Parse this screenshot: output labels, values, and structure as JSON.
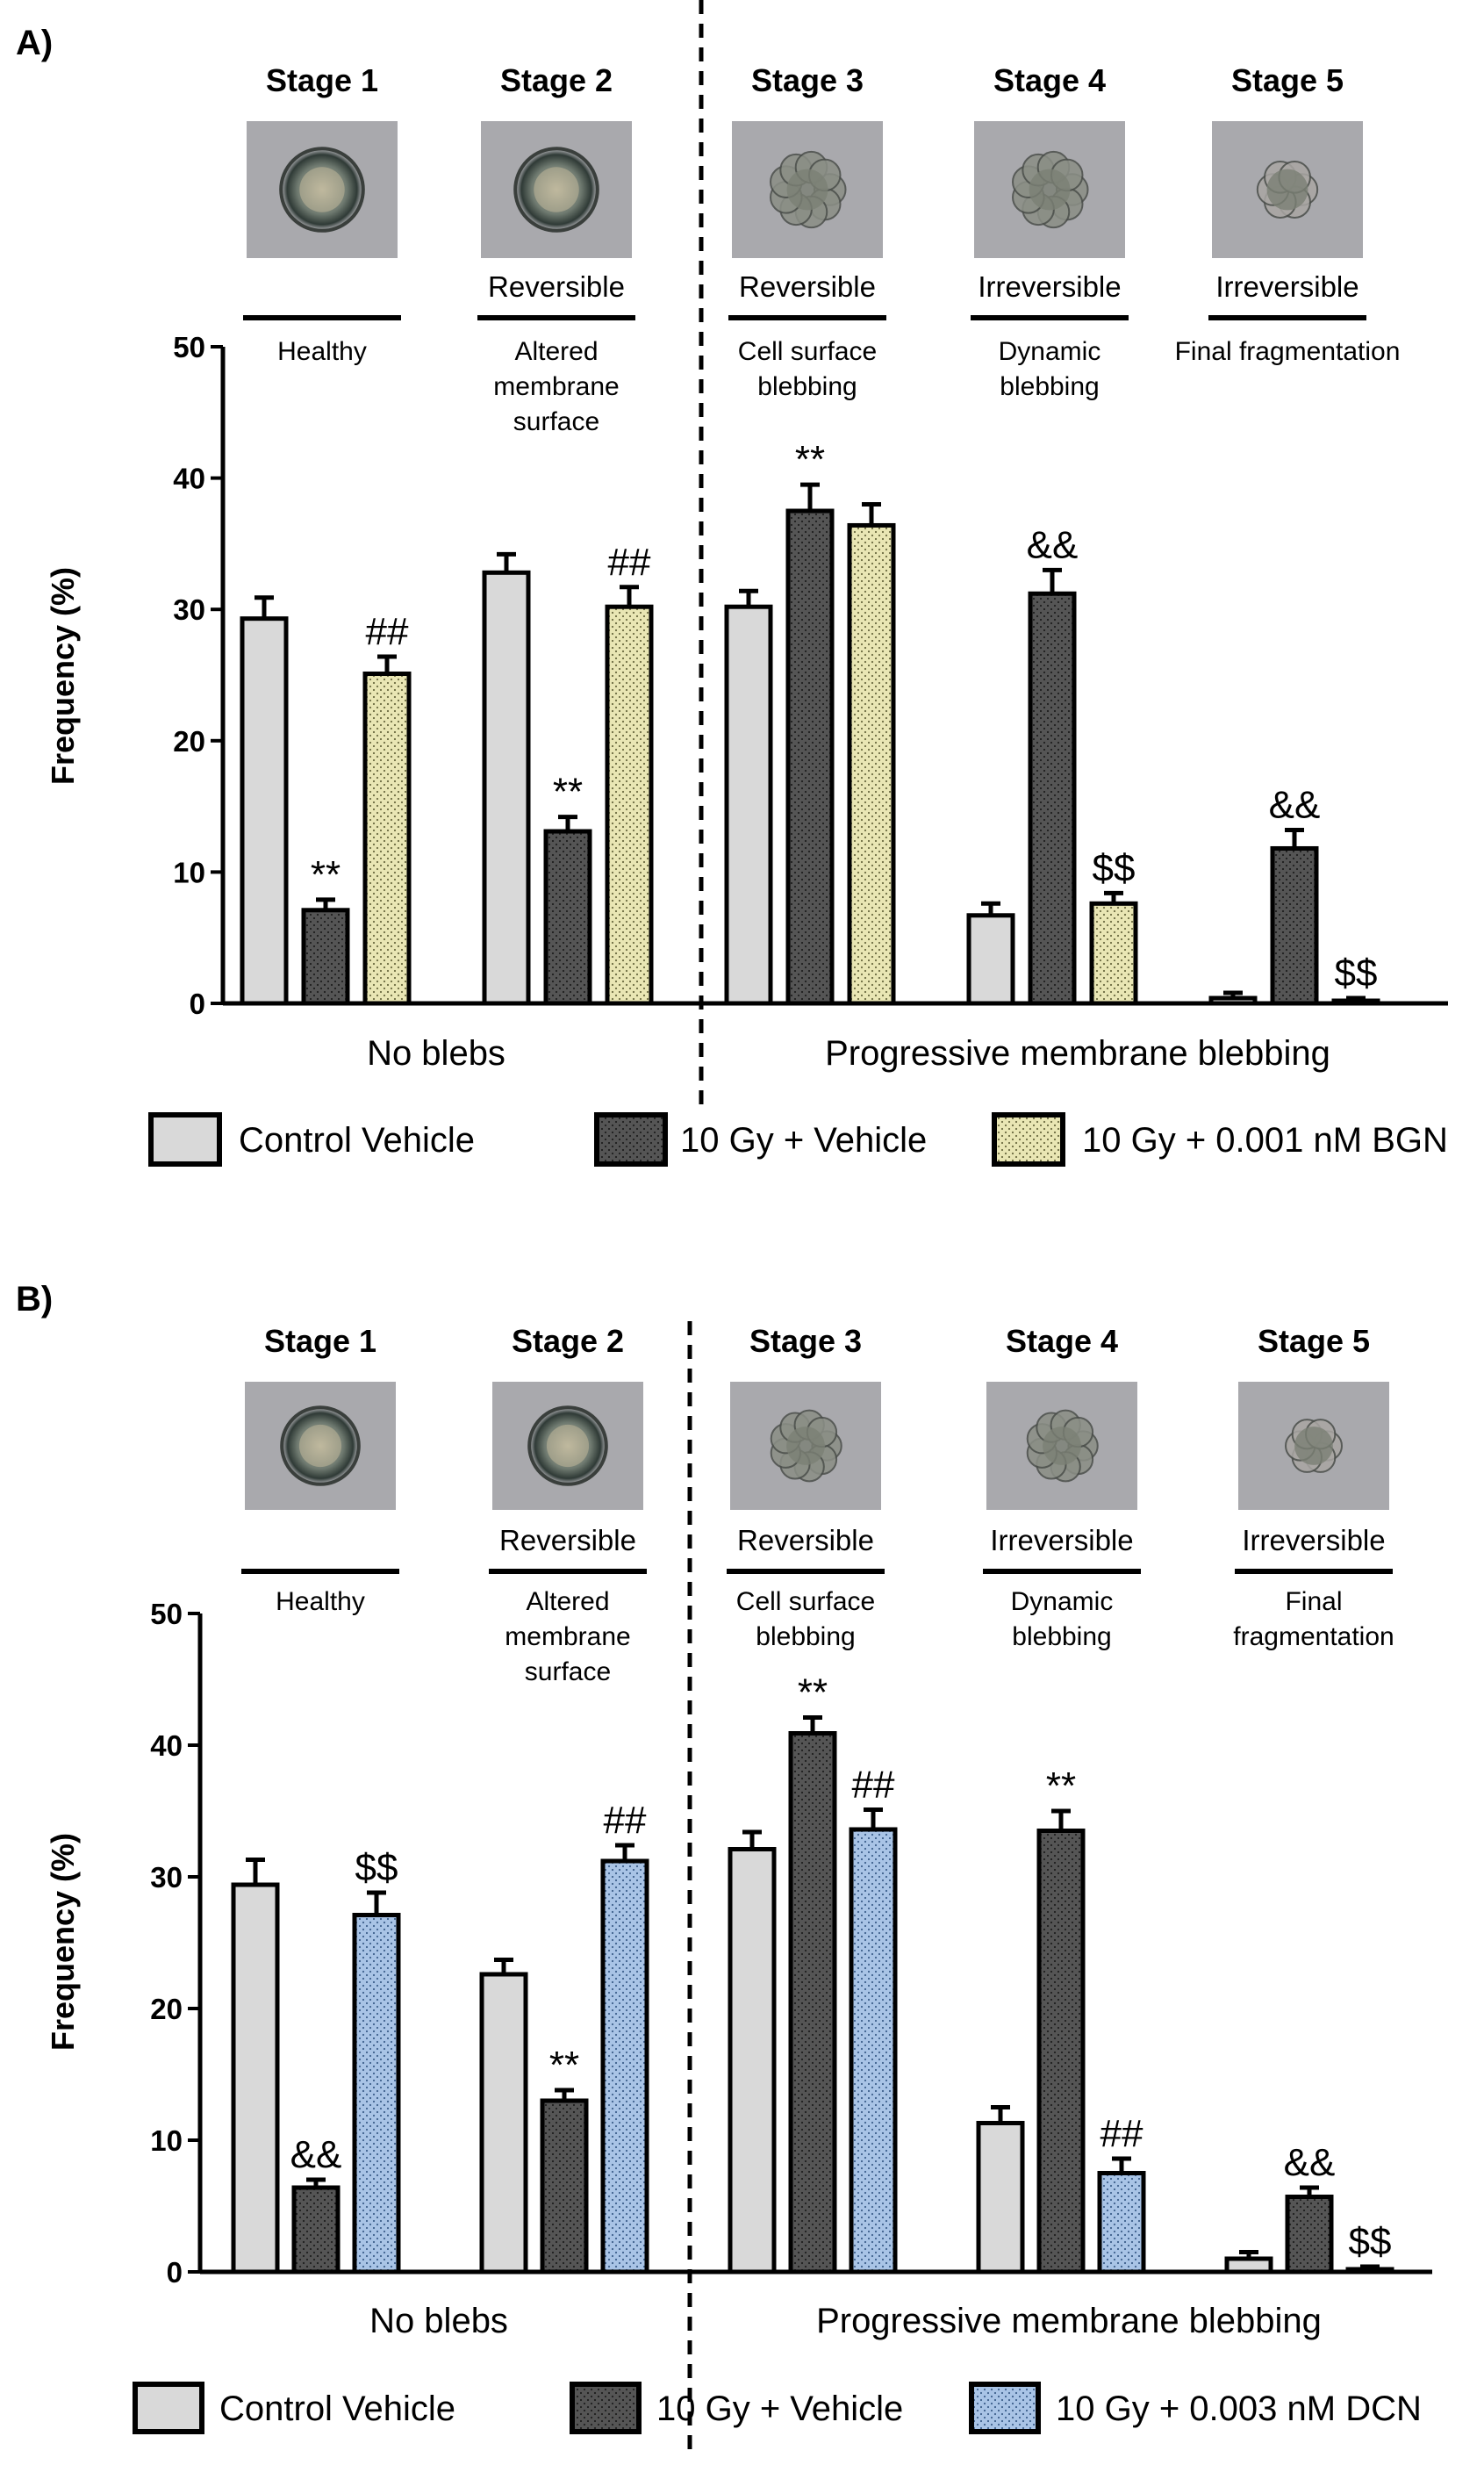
{
  "panels": [
    {
      "label": "A)",
      "stages": [
        {
          "title": "Stage 1",
          "reversibility": "",
          "desc": [
            "Healthy"
          ]
        },
        {
          "title": "Stage 2",
          "reversibility": "Reversible",
          "desc": [
            "Altered",
            "membrane",
            "surface"
          ]
        },
        {
          "title": "Stage 3",
          "reversibility": "Reversible",
          "desc": [
            "Cell surface",
            "blebbing"
          ]
        },
        {
          "title": "Stage 4",
          "reversibility": "Irreversible",
          "desc": [
            "Dynamic",
            "blebbing"
          ]
        },
        {
          "title": "Stage 5",
          "reversibility": "Irreversible",
          "desc": [
            "Final fragmentation"
          ]
        }
      ],
      "groups": [
        "No blebs",
        "Progressive membrane blebbing"
      ],
      "legend": [
        "Control Vehicle",
        "10 Gy + Vehicle",
        "10 Gy + 0.001 nM BGN"
      ],
      "colors": [
        "#d9d9d9",
        "#555555",
        "#e9e6b4"
      ]
    },
    {
      "label": "B)",
      "stages": [
        {
          "title": "Stage 1",
          "reversibility": "",
          "desc": [
            "Healthy"
          ]
        },
        {
          "title": "Stage 2",
          "reversibility": "Reversible",
          "desc": [
            "Altered",
            "membrane",
            "surface"
          ]
        },
        {
          "title": "Stage 3",
          "reversibility": "Reversible",
          "desc": [
            "Cell surface",
            "blebbing"
          ]
        },
        {
          "title": "Stage 4",
          "reversibility": "Irreversible",
          "desc": [
            "Dynamic",
            "blebbing"
          ]
        },
        {
          "title": "Stage 5",
          "reversibility": "Irreversible",
          "desc": [
            "Final",
            "fragmentation"
          ]
        }
      ],
      "groups": [
        "No blebs",
        "Progressive membrane blebbing"
      ],
      "legend": [
        "Control Vehicle",
        "10 Gy + Vehicle",
        "10 Gy + 0.003 nM DCN"
      ],
      "colors": [
        "#d9d9d9",
        "#555555",
        "#a9c4e6"
      ]
    }
  ],
  "chart_data": [
    {
      "type": "bar",
      "title": "",
      "xlabel": "",
      "ylabel": "Frequency (%)",
      "ylim": [
        0,
        50
      ],
      "yticks": [
        0,
        10,
        20,
        30,
        40,
        50
      ],
      "categories": [
        "Stage 1",
        "Stage 2",
        "Stage 3",
        "Stage 4",
        "Stage 5"
      ],
      "series": [
        {
          "name": "Control Vehicle",
          "values": [
            29.3,
            32.8,
            30.2,
            6.7,
            0.4
          ],
          "errors": [
            1.6,
            1.4,
            1.2,
            0.9,
            0.4
          ],
          "annotations": [
            "",
            "",
            "",
            "",
            ""
          ]
        },
        {
          "name": "10 Gy + Vehicle",
          "values": [
            7.1,
            13.1,
            37.5,
            31.2,
            11.8
          ],
          "errors": [
            0.8,
            1.1,
            2.0,
            1.8,
            1.4
          ],
          "annotations": [
            "**",
            "**",
            "**",
            "&&",
            "&&"
          ]
        },
        {
          "name": "10 Gy + 0.001 nM BGN",
          "values": [
            25.1,
            30.2,
            36.4,
            7.6,
            0.2
          ],
          "errors": [
            1.3,
            1.5,
            1.6,
            0.8,
            0.2
          ],
          "annotations": [
            "##",
            "##",
            "",
            "$$",
            "$$"
          ]
        }
      ]
    },
    {
      "type": "bar",
      "title": "",
      "xlabel": "",
      "ylabel": "Frequency (%)",
      "ylim": [
        0,
        50
      ],
      "yticks": [
        0,
        10,
        20,
        30,
        40,
        50
      ],
      "categories": [
        "Stage 1",
        "Stage 2",
        "Stage 3",
        "Stage 4",
        "Stage 5"
      ],
      "series": [
        {
          "name": "Control Vehicle",
          "values": [
            29.4,
            22.6,
            32.1,
            11.3,
            1.0
          ],
          "errors": [
            1.9,
            1.1,
            1.3,
            1.2,
            0.5
          ],
          "annotations": [
            "",
            "",
            "",
            "",
            ""
          ]
        },
        {
          "name": "10 Gy + Vehicle",
          "values": [
            6.4,
            13.0,
            40.9,
            33.5,
            5.7
          ],
          "errors": [
            0.6,
            0.8,
            1.2,
            1.5,
            0.7
          ],
          "annotations": [
            "&&",
            "**",
            "**",
            "**",
            "&&"
          ]
        },
        {
          "name": "10 Gy + 0.003 nM DCN",
          "values": [
            27.1,
            31.2,
            33.6,
            7.5,
            0.2
          ],
          "errors": [
            1.7,
            1.2,
            1.5,
            1.1,
            0.2
          ],
          "annotations": [
            "$$",
            "##",
            "##",
            "##",
            "$$"
          ]
        }
      ]
    }
  ]
}
